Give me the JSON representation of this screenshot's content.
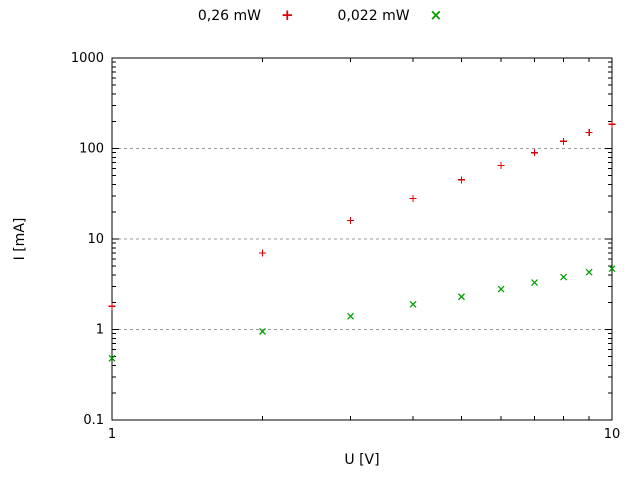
{
  "page": {
    "background": "#ffffff"
  },
  "chart_data": {
    "type": "scatter",
    "title": "",
    "xlabel": "U [V]",
    "ylabel": "I [mA]",
    "x_scale": "log",
    "y_scale": "log",
    "xlim": [
      1,
      10
    ],
    "ylim": [
      0.1,
      1000
    ],
    "grid": "horizontal dashed at y = 1, 10, 100",
    "grid_lines_at": [
      1,
      10,
      100
    ],
    "legend_position": "top-center",
    "x": [
      1,
      2,
      3,
      4,
      5,
      6,
      7,
      8,
      9,
      10
    ],
    "series": [
      {
        "name": "0,26 mW",
        "marker": "plus",
        "marker_glyph": "+",
        "color": "#dd0000",
        "values": [
          1.8,
          7,
          16,
          28,
          45,
          65,
          90,
          120,
          150,
          185
        ]
      },
      {
        "name": "0,022 mW",
        "marker": "cross",
        "marker_glyph": "×",
        "color": "#00a000",
        "values": [
          0.48,
          0.95,
          1.4,
          1.9,
          2.3,
          2.8,
          3.3,
          3.8,
          4.3,
          4.7
        ]
      }
    ],
    "x_ticks": [
      {
        "value": 1,
        "label": "1"
      },
      {
        "value": 10,
        "label": "10"
      }
    ],
    "y_ticks": [
      {
        "value": 0.1,
        "label": "0.1"
      },
      {
        "value": 1,
        "label": "1"
      },
      {
        "value": 10,
        "label": "10"
      },
      {
        "value": 100,
        "label": "100"
      },
      {
        "value": 1000,
        "label": "1000"
      }
    ]
  }
}
